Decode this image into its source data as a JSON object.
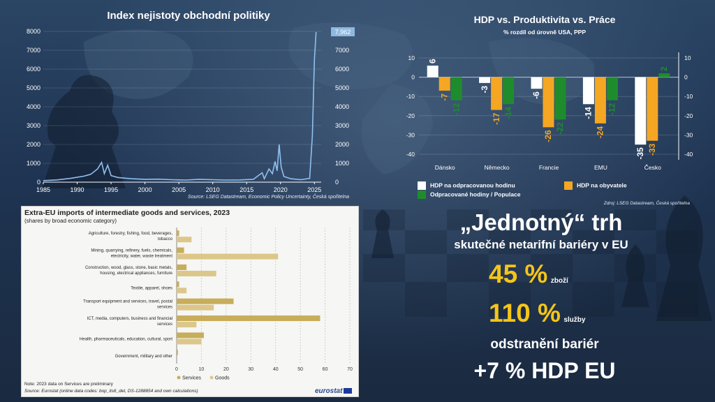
{
  "colors": {
    "line": "#8fc0f0",
    "white_bar": "#ffffff",
    "orange_bar": "#f5a623",
    "green_bar": "#1e8c2c",
    "gold_bar": "#c8ad5a",
    "gold_light": "#dcc78a",
    "accent": "#f5c518"
  },
  "epu": {
    "chart_data": {
      "type": "line",
      "title": "Index nejistoty obchodní politiky",
      "source": "Source: LSEG Datastream, Economic Policy Uncertainty, Česká spořitelna",
      "x_ticks": [
        "1985",
        "1990",
        "1995",
        "2000",
        "2005",
        "2010",
        "2015",
        "2020",
        "2025"
      ],
      "y_ticks": [
        "0",
        "1000",
        "2000",
        "3000",
        "4000",
        "5000",
        "6000",
        "7000",
        "8000"
      ],
      "ylim": [
        0,
        8000
      ],
      "xlim": [
        1985,
        2026
      ],
      "last_value_label": "7,962",
      "points": [
        [
          1985,
          80
        ],
        [
          1987,
          120
        ],
        [
          1989,
          200
        ],
        [
          1991,
          320
        ],
        [
          1992,
          420
        ],
        [
          1993,
          700
        ],
        [
          1993.6,
          1050
        ],
        [
          1994,
          450
        ],
        [
          1994.5,
          900
        ],
        [
          1995,
          350
        ],
        [
          1996,
          250
        ],
        [
          1998,
          180
        ],
        [
          2000,
          150
        ],
        [
          2002,
          160
        ],
        [
          2004,
          130
        ],
        [
          2006,
          110
        ],
        [
          2008,
          150
        ],
        [
          2010,
          130
        ],
        [
          2012,
          110
        ],
        [
          2014,
          120
        ],
        [
          2016,
          150
        ],
        [
          2017.3,
          500
        ],
        [
          2017.6,
          180
        ],
        [
          2018.3,
          700
        ],
        [
          2018.8,
          450
        ],
        [
          2019.2,
          1100
        ],
        [
          2019.5,
          600
        ],
        [
          2019.8,
          2000
        ],
        [
          2020.1,
          800
        ],
        [
          2020.5,
          300
        ],
        [
          2021.5,
          180
        ],
        [
          2023,
          130
        ],
        [
          2024.3,
          200
        ],
        [
          2024.7,
          2500
        ],
        [
          2025.0,
          6500
        ],
        [
          2025.25,
          7962
        ]
      ]
    }
  },
  "hdp": {
    "chart_data": {
      "type": "bar",
      "title": "HDP vs. Produktivita vs. Práce",
      "subtitle": "% rozdíl od úrovně USA, PPP",
      "source": "Zdroj: LSEG Datastream, Česká spořitelna",
      "categories": [
        "Dánsko",
        "Německo",
        "Francie",
        "EMU",
        "Česko"
      ],
      "ylim": [
        -40,
        10
      ],
      "y_ticks": [
        "10",
        "0",
        "-10",
        "-20",
        "-30",
        "-40"
      ],
      "series": [
        {
          "name": "HDP na odpracovanou hodinu",
          "values": [
            6,
            -3,
            -6,
            -14,
            -35
          ]
        },
        {
          "name": "HDP na obyvatele",
          "values": [
            -7,
            -17,
            -26,
            -24,
            -33
          ]
        },
        {
          "name": "Odpracované hodiny / Populace",
          "values": [
            -12,
            -14,
            -22,
            -12,
            2
          ]
        }
      ],
      "legend": [
        "HDP na odpracovanou hodinu",
        "HDP na obyvatele",
        "Odpracované hodiny / Populace"
      ]
    }
  },
  "eu_imports": {
    "chart_data": {
      "type": "bar",
      "title": "Extra-EU imports of intermediate goods and services, 2023",
      "subtitle": "(shares by broad economic category)",
      "categories": [
        "Agriculture, forestry, fishing, food, beverages, tobacco",
        "Mining, quarrying, refinery, fuels, chemicals, electricity, water, waste treatment",
        "Construction, wood, glass, stone, basic metals, housing, electrical appliances, furniture",
        "Textile, apparel, shoes",
        "Transport equipment and services, travel, postal services",
        "ICT, media, computers, business and financial services",
        "Health, pharmaceuticals, education, cultural, sport",
        "Government, military and other"
      ],
      "series": [
        {
          "name": "Services",
          "values": [
            1,
            3,
            4,
            1,
            23,
            58,
            11,
            0.5
          ]
        },
        {
          "name": "Goods",
          "values": [
            6,
            41,
            16,
            4,
            15,
            8,
            10,
            0
          ]
        }
      ],
      "x_ticks": [
        "0",
        "10",
        "20",
        "30",
        "40",
        "50",
        "60",
        "70"
      ],
      "xlim": [
        0,
        70
      ],
      "legend": [
        "Services",
        "Goods"
      ],
      "note": "Note: 2023 data on Services are preliminary",
      "source": "Source: Eurostat (online data codes: bop_its6_det, DS-1288854 and own calculations)",
      "brand": "eurostat"
    }
  },
  "right_text": {
    "headline": "„Jednotný“ trh",
    "subheadline": "skutečné netarifní bariéry v EU",
    "goods_pct": "45 %",
    "goods_label": "zboží",
    "services_pct": "110 %",
    "services_label": "služby",
    "removal": "odstranění bariér",
    "gdp_gain": "+7 % HDP EU"
  }
}
